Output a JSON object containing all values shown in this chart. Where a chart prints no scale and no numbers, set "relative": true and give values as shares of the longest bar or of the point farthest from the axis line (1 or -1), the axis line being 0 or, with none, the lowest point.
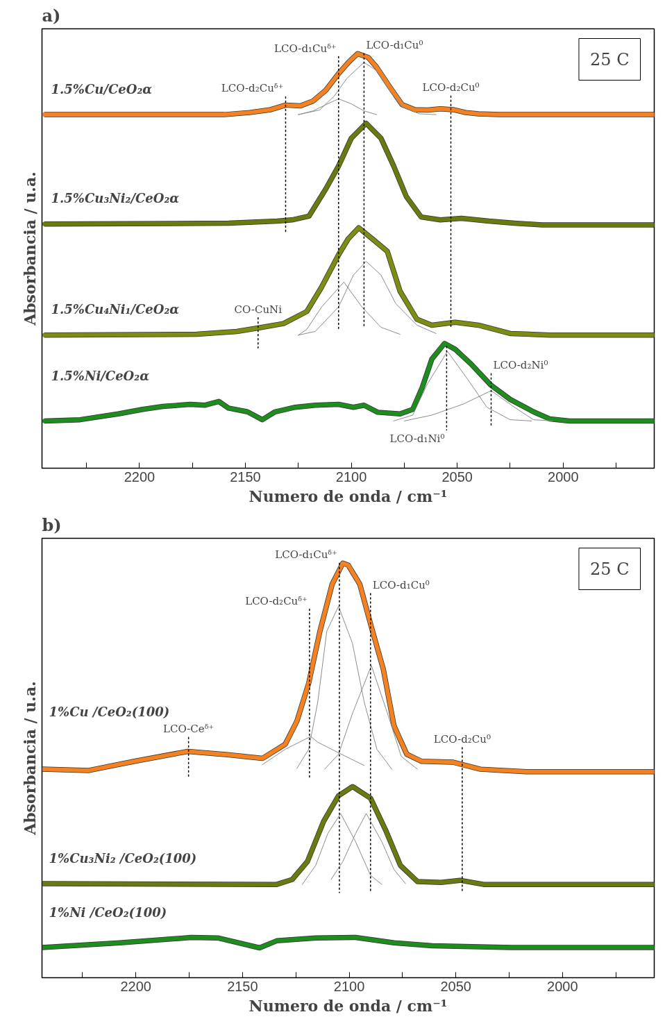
{
  "chart_data": [
    {
      "type": "line",
      "title": "a)",
      "xlabel": "Numero de onda / cm⁻¹",
      "ylabel": "Absorbancia / u.a.",
      "relative": true,
      "xlim": [
        2246,
        1957
      ],
      "xticks": [
        {
          "value": 2225,
          "label": null
        },
        2200,
        {
          "value": 2175,
          "label": null
        },
        2150,
        {
          "value": 2125,
          "label": null
        },
        2100,
        {
          "value": 2075,
          "label": null
        },
        2050,
        {
          "value": 2025,
          "label": null
        },
        2000,
        {
          "value": 1975,
          "label": null
        }
      ],
      "annotations": [
        "25 C",
        {
          "text": "LCO-d₁Cuᵟ⁺",
          "x": 2106,
          "y": 0.993
        },
        {
          "text": "LCO-d₁Cu⁰",
          "x": 2094,
          "y": 1.0
        },
        {
          "text": "LCO-d₂Cuᵟ⁺",
          "x": 2131,
          "y": 0.896
        },
        {
          "text": "LCO-d₂Cu⁰",
          "x": 2053,
          "y": 0.898
        },
        {
          "text": "CO-CuNi",
          "x": 2144,
          "y": 0.363
        },
        {
          "text": "LCO-d₂Ni⁰",
          "x": 2034,
          "y": 0.228
        },
        {
          "text": "LCO-d₁Ni⁰",
          "x": 2055,
          "y": 0.092
        }
      ],
      "series": [
        {
          "name": "1.5%Cu/CeO₂α",
          "color": "#f58220",
          "x": [
            2245,
            2160,
            2148,
            2138,
            2131,
            2124,
            2118,
            2112,
            2106,
            2101,
            2097,
            2092,
            2088,
            2082,
            2076,
            2070,
            2064,
            2058,
            2052,
            2046,
            2040,
            2030,
            1957
          ],
          "values": [
            0.853,
            0.853,
            0.858,
            0.865,
            0.876,
            0.874,
            0.886,
            0.912,
            0.952,
            0.981,
            1.0,
            0.991,
            0.967,
            0.921,
            0.877,
            0.865,
            0.864,
            0.867,
            0.865,
            0.858,
            0.855,
            0.853,
            0.853
          ]
        },
        {
          "color": "#8c8c8c",
          "x": [
            2125,
            2115,
            2108,
            2102,
            2094,
            2088,
            2082,
            2076,
            2068,
            2060
          ],
          "values": [
            0.853,
            0.864,
            0.898,
            0.941,
            0.979,
            0.959,
            0.912,
            0.872,
            0.855,
            0.853
          ]
        },
        {
          "color": "#8c8c8c",
          "x": [
            2125,
            2118,
            2112,
            2106,
            2100,
            2094,
            2088
          ],
          "values": [
            0.853,
            0.862,
            0.877,
            0.891,
            0.879,
            0.862,
            0.853
          ]
        },
        {
          "name": "1.5%Cu₃Ni₂/CeO₂α",
          "color": "#6b7a10",
          "x": [
            2245,
            2158,
            2135,
            2128,
            2120,
            2112,
            2106,
            2100,
            2093,
            2086,
            2080,
            2074,
            2067,
            2058,
            2048,
            2035,
            2023,
            2010,
            1957
          ],
          "values": [
            0.589,
            0.591,
            0.596,
            0.599,
            0.608,
            0.674,
            0.729,
            0.796,
            0.832,
            0.796,
            0.729,
            0.655,
            0.606,
            0.599,
            0.603,
            0.596,
            0.591,
            0.587,
            0.587
          ]
        },
        {
          "name": "1.5%Cu₄Ni₁/CeO₂α",
          "color": "#7d8c12",
          "x": [
            2245,
            2173,
            2154,
            2143,
            2132,
            2121,
            2114,
            2106,
            2101.5,
            2096.5,
            2090,
            2083,
            2077,
            2069,
            2062,
            2051,
            2040,
            2025,
            2006,
            1957
          ],
          "values": [
            0.321,
            0.323,
            0.33,
            0.339,
            0.349,
            0.378,
            0.437,
            0.515,
            0.553,
            0.58,
            0.553,
            0.523,
            0.427,
            0.359,
            0.345,
            0.352,
            0.345,
            0.325,
            0.321,
            0.321
          ]
        },
        {
          "color": "#8c8c8c",
          "x": [
            2125,
            2117,
            2106,
            2099,
            2093,
            2086,
            2079,
            2069,
            2060
          ],
          "values": [
            0.321,
            0.33,
            0.389,
            0.466,
            0.499,
            0.466,
            0.397,
            0.345,
            0.325
          ]
        },
        {
          "color": "#8c8c8c",
          "x": [
            2125,
            2121,
            2114,
            2103.5,
            2095,
            2086,
            2077
          ],
          "values": [
            0.321,
            0.335,
            0.389,
            0.449,
            0.389,
            0.34,
            0.323
          ]
        },
        {
          "name": "1.5%Ni/CeO₂α",
          "color": "#1e8c1e",
          "x": [
            2245,
            2228,
            2210,
            2198.5,
            2189,
            2176,
            2169,
            2162.5,
            2158,
            2149,
            2142,
            2136,
            2126.5,
            2117,
            2106,
            2099,
            2094,
            2087.6,
            2077,
            2071,
            2066.5,
            2062,
            2056,
            2051,
            2043.6,
            2034,
            2025,
            2014,
            2006.4,
            1997,
            1957
          ],
          "values": [
            0.114,
            0.117,
            0.131,
            0.142,
            0.149,
            0.154,
            0.152,
            0.161,
            0.145,
            0.136,
            0.117,
            0.136,
            0.147,
            0.152,
            0.154,
            0.147,
            0.152,
            0.135,
            0.131,
            0.142,
            0.195,
            0.263,
            0.301,
            0.287,
            0.252,
            0.2,
            0.166,
            0.136,
            0.119,
            0.114,
            0.114
          ]
        },
        {
          "color": "#8c8c8c",
          "x": [
            2080,
            2071,
            2064,
            2054.6,
            2045,
            2036,
            2025,
            2015
          ],
          "values": [
            0.114,
            0.128,
            0.204,
            0.282,
            0.214,
            0.147,
            0.117,
            0.114
          ]
        },
        {
          "color": "#8c8c8c",
          "x": [
            2075,
            2062,
            2047,
            2034,
            2023,
            2014,
            2005
          ],
          "values": [
            0.114,
            0.128,
            0.155,
            0.187,
            0.147,
            0.117,
            0.114
          ]
        },
        {
          "color": "#000000",
          "line_style": "dotted",
          "x": [
            2131,
            2131
          ],
          "values": [
            0.896,
            0.57
          ]
        },
        {
          "color": "#000000",
          "line_style": "dotted",
          "x": [
            2106,
            2106
          ],
          "values": [
            0.993,
            0.337
          ]
        },
        {
          "color": "#000000",
          "line_style": "dotted",
          "x": [
            2094,
            2094
          ],
          "values": [
            1.0,
            0.337
          ]
        },
        {
          "color": "#000000",
          "line_style": "dotted",
          "x": [
            2053,
            2053
          ],
          "values": [
            0.898,
            0.337
          ]
        },
        {
          "color": "#000000",
          "line_style": "dotted",
          "x": [
            2144,
            2144
          ],
          "values": [
            0.363,
            0.29
          ]
        },
        {
          "color": "#000000",
          "line_style": "dotted",
          "x": [
            2055,
            2055
          ],
          "values": [
            0.294,
            0.092
          ]
        },
        {
          "color": "#000000",
          "line_style": "dotted",
          "x": [
            2034,
            2034
          ],
          "values": [
            0.228,
            0.1
          ]
        }
      ]
    },
    {
      "type": "line",
      "title": "b)",
      "xlabel": "Numero de onda / cm⁻¹",
      "ylabel": "Absorbancia / u.a.",
      "relative": true,
      "xlim": [
        2244,
        1957
      ],
      "xticks": [
        {
          "value": 2225,
          "label": null
        },
        2200,
        {
          "value": 2175,
          "label": null
        },
        2150,
        {
          "value": 2125,
          "label": null
        },
        2100,
        {
          "value": 2075,
          "label": null
        },
        2050,
        {
          "value": 2025,
          "label": null
        },
        2000,
        {
          "value": 1975,
          "label": null
        }
      ],
      "annotations": [
        "25 C",
        {
          "text": "LCO-Ceᵟ⁺",
          "x": 2175.3,
          "y": 0.58
        },
        {
          "text": "LCO-d₂Cuᵟ⁺",
          "x": 2118.6,
          "y": 0.889
        },
        {
          "text": "LCO-d₁Cuᵟ⁺",
          "x": 2104.6,
          "y": 1.0
        },
        {
          "text": "LCO-d₁Cu⁰",
          "x": 2090,
          "y": 0.927
        },
        {
          "text": "LCO-d₂Cu⁰",
          "x": 2047,
          "y": 0.555
        }
      ],
      "series": [
        {
          "name": "1%Cu /CeO₂(100)",
          "color": "#f58220",
          "x": [
            2244,
            2222,
            2200.7,
            2175.6,
            2157,
            2140.7,
            2130,
            2124.5,
            2119,
            2113.7,
            2108,
            2103,
            2100.4,
            2095,
            2089.6,
            2084,
            2079,
            2073,
            2066,
            2051.5,
            2038.5,
            2017,
            1957
          ],
          "values": [
            0.503,
            0.5,
            0.522,
            0.546,
            0.538,
            0.529,
            0.563,
            0.619,
            0.71,
            0.836,
            0.949,
            1.0,
            0.995,
            0.949,
            0.846,
            0.744,
            0.608,
            0.539,
            0.522,
            0.52,
            0.503,
            0.497,
            0.497
          ]
        },
        {
          "color": "#8c8c8c",
          "x": [
            2124.5,
            2119,
            2114.7,
            2110.5,
            2105,
            2098.5,
            2093,
            2087,
            2080
          ],
          "values": [
            0.505,
            0.551,
            0.666,
            0.836,
            0.896,
            0.807,
            0.666,
            0.551,
            0.503
          ]
        },
        {
          "color": "#8c8c8c",
          "x": [
            2111.5,
            2105,
            2098.5,
            2089.6,
            2082,
            2075.6,
            2068
          ],
          "values": [
            0.503,
            0.539,
            0.637,
            0.753,
            0.637,
            0.534,
            0.503
          ]
        },
        {
          "color": "#8c8c8c",
          "x": [
            2140.7,
            2130,
            2118,
            2114.7,
            2103.6,
            2093
          ],
          "values": [
            0.514,
            0.551,
            0.582,
            0.568,
            0.539,
            0.512
          ]
        },
        {
          "name": "1%Cu₃Ni₂ /CeO₂(100)",
          "color": "#6b7a10",
          "x": [
            2244,
            2134,
            2126.7,
            2119.6,
            2112,
            2105,
            2098.4,
            2090,
            2083,
            2076,
            2068,
            2057,
            2048,
            2037,
            1957
          ],
          "values": [
            0.227,
            0.225,
            0.237,
            0.28,
            0.377,
            0.439,
            0.461,
            0.433,
            0.357,
            0.271,
            0.232,
            0.23,
            0.235,
            0.225,
            0.225
          ]
        },
        {
          "color": "#8c8c8c",
          "x": [
            2122,
            2115.7,
            2110,
            2104,
            2097,
            2090,
            2084.7
          ],
          "values": [
            0.225,
            0.271,
            0.348,
            0.396,
            0.328,
            0.247,
            0.225
          ]
        },
        {
          "color": "#8c8c8c",
          "x": [
            2108.5,
            2103,
            2097,
            2092,
            2084.7,
            2079,
            2073.6
          ],
          "values": [
            0.237,
            0.28,
            0.348,
            0.396,
            0.328,
            0.261,
            0.227
          ]
        },
        {
          "name": "1%Ni /CeO₂(100)",
          "color": "#1e8c1e",
          "x": [
            2244,
            2207.5,
            2174,
            2161.6,
            2142,
            2134,
            2115.7,
            2097,
            2079,
            2061,
            2024,
            1957
          ],
          "values": [
            0.073,
            0.084,
            0.097,
            0.096,
            0.072,
            0.089,
            0.096,
            0.097,
            0.084,
            0.077,
            0.073,
            0.073
          ]
        },
        {
          "color": "#000000",
          "line_style": "dotted",
          "x": [
            2175.3,
            2175.3
          ],
          "values": [
            0.58,
            0.48
          ]
        },
        {
          "color": "#000000",
          "line_style": "dotted",
          "x": [
            2118.6,
            2118.6
          ],
          "values": [
            0.889,
            0.483
          ]
        },
        {
          "color": "#000000",
          "line_style": "dotted",
          "x": [
            2104.6,
            2104.6
          ],
          "values": [
            1.0,
            0.205
          ]
        },
        {
          "color": "#000000",
          "line_style": "dotted",
          "x": [
            2090,
            2090
          ],
          "values": [
            0.927,
            0.205
          ]
        },
        {
          "color": "#000000",
          "line_style": "dotted",
          "x": [
            2047,
            2047
          ],
          "values": [
            0.555,
            0.205
          ]
        }
      ]
    }
  ]
}
